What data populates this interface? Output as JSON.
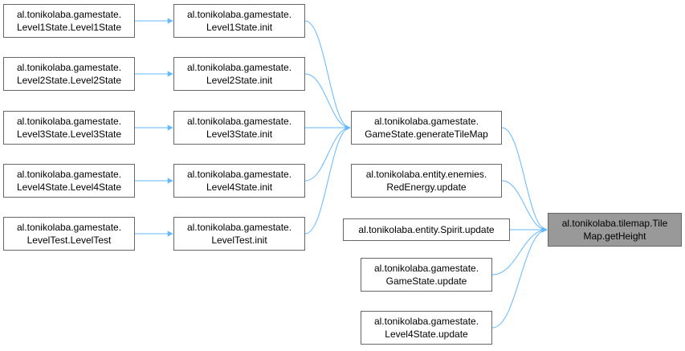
{
  "colors": {
    "edge": "#63b8ff",
    "node_border": "#666666",
    "node_fill": "#ffffff",
    "target_fill": "#999999",
    "text": "#000000"
  },
  "nodes": {
    "l1_ctor": {
      "line1": "al.tonikolaba.gamestate.",
      "line2": "Level1State.Level1State"
    },
    "l2_ctor": {
      "line1": "al.tonikolaba.gamestate.",
      "line2": "Level2State.Level2State"
    },
    "l3_ctor": {
      "line1": "al.tonikolaba.gamestate.",
      "line2": "Level3State.Level3State"
    },
    "l4_ctor": {
      "line1": "al.tonikolaba.gamestate.",
      "line2": "Level4State.Level4State"
    },
    "lt_ctor": {
      "line1": "al.tonikolaba.gamestate.",
      "line2": "LevelTest.LevelTest"
    },
    "l1_init": {
      "line1": "al.tonikolaba.gamestate.",
      "line2": "Level1State.init"
    },
    "l2_init": {
      "line1": "al.tonikolaba.gamestate.",
      "line2": "Level2State.init"
    },
    "l3_init": {
      "line1": "al.tonikolaba.gamestate.",
      "line2": "Level3State.init"
    },
    "l4_init": {
      "line1": "al.tonikolaba.gamestate.",
      "line2": "Level4State.init"
    },
    "lt_init": {
      "line1": "al.tonikolaba.gamestate.",
      "line2": "LevelTest.init"
    },
    "gen_tile": {
      "line1": "al.tonikolaba.gamestate.",
      "line2": "GameState.generateTileMap"
    },
    "red_energy": {
      "line1": "al.tonikolaba.entity.enemies.",
      "line2": "RedEnergy.update"
    },
    "spirit": {
      "line1": "al.tonikolaba.entity.Spirit.update"
    },
    "gs_update": {
      "line1": "al.tonikolaba.gamestate.",
      "line2": "GameState.update"
    },
    "l4_update": {
      "line1": "al.tonikolaba.gamestate.",
      "line2": "Level4State.update"
    },
    "target": {
      "line1": "al.tonikolaba.tilemap.Tile",
      "line2": "Map.getHeight"
    }
  },
  "edges": [
    {
      "from": "l1_ctor",
      "to": "l1_init"
    },
    {
      "from": "l2_ctor",
      "to": "l2_init"
    },
    {
      "from": "l3_ctor",
      "to": "l3_init"
    },
    {
      "from": "l4_ctor",
      "to": "l4_init"
    },
    {
      "from": "lt_ctor",
      "to": "lt_init"
    },
    {
      "from": "l1_init",
      "to": "gen_tile"
    },
    {
      "from": "l2_init",
      "to": "gen_tile"
    },
    {
      "from": "l3_init",
      "to": "gen_tile"
    },
    {
      "from": "l4_init",
      "to": "gen_tile"
    },
    {
      "from": "lt_init",
      "to": "gen_tile"
    },
    {
      "from": "gen_tile",
      "to": "target"
    },
    {
      "from": "red_energy",
      "to": "target"
    },
    {
      "from": "spirit",
      "to": "target"
    },
    {
      "from": "gs_update",
      "to": "target"
    },
    {
      "from": "l4_update",
      "to": "target"
    }
  ]
}
